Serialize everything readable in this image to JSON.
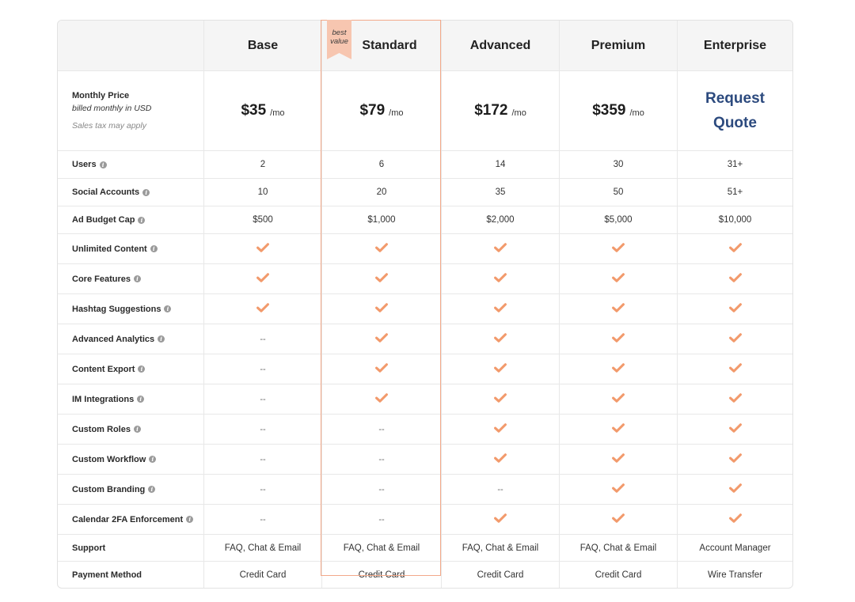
{
  "plans": [
    {
      "name": "Base",
      "price": "$35",
      "unit": "/mo"
    },
    {
      "name": "Standard",
      "price": "$79",
      "unit": "/mo"
    },
    {
      "name": "Advanced",
      "price": "$172",
      "unit": "/mo"
    },
    {
      "name": "Premium",
      "price": "$359",
      "unit": "/mo"
    },
    {
      "name": "Enterprise",
      "quote_line1": "Request",
      "quote_line2": "Quote"
    }
  ],
  "badge": {
    "line1": "best",
    "line2": "value"
  },
  "price_row": {
    "title": "Monthly Price",
    "billing": "billed monthly in USD",
    "tax": "Sales tax may apply"
  },
  "rows": [
    {
      "label": "Users",
      "info": true,
      "values": [
        "2",
        "6",
        "14",
        "30",
        "31+"
      ]
    },
    {
      "label": "Social Accounts",
      "info": true,
      "values": [
        "10",
        "20",
        "35",
        "50",
        "51+"
      ]
    },
    {
      "label": "Ad Budget Cap",
      "info": true,
      "values": [
        "$500",
        "$1,000",
        "$2,000",
        "$5,000",
        "$10,000"
      ]
    }
  ],
  "features": [
    {
      "label": "Unlimited Content",
      "values": [
        true,
        true,
        true,
        true,
        true
      ]
    },
    {
      "label": "Core Features",
      "values": [
        true,
        true,
        true,
        true,
        true
      ]
    },
    {
      "label": "Hashtag Suggestions",
      "values": [
        true,
        true,
        true,
        true,
        true
      ]
    },
    {
      "label": "Advanced Analytics",
      "values": [
        false,
        true,
        true,
        true,
        true
      ]
    },
    {
      "label": "Content Export",
      "values": [
        false,
        true,
        true,
        true,
        true
      ]
    },
    {
      "label": "IM Integrations",
      "values": [
        false,
        true,
        true,
        true,
        true
      ]
    },
    {
      "label": "Custom Roles",
      "values": [
        false,
        false,
        true,
        true,
        true
      ]
    },
    {
      "label": "Custom Workflow",
      "values": [
        false,
        false,
        true,
        true,
        true
      ]
    },
    {
      "label": "Custom Branding",
      "values": [
        false,
        false,
        false,
        true,
        true
      ]
    },
    {
      "label": "Calendar 2FA Enforcement",
      "values": [
        false,
        false,
        true,
        true,
        true
      ]
    }
  ],
  "dash": "--",
  "final_rows": [
    {
      "label": "Support",
      "values": [
        "FAQ, Chat & Email",
        "FAQ, Chat & Email",
        "FAQ, Chat & Email",
        "FAQ, Chat & Email",
        "Account Manager"
      ]
    },
    {
      "label": "Payment Method",
      "values": [
        "Credit Card",
        "Credit Card",
        "Credit Card",
        "Credit Card",
        "Wire Transfer"
      ]
    }
  ],
  "info_icon_glyph": "i",
  "colors": {
    "accent": "#f29a6c",
    "highlight_border": "#f3a98a",
    "quote_link": "#2c4a7e"
  },
  "icons": {
    "check": "check-icon",
    "info": "info-icon"
  }
}
